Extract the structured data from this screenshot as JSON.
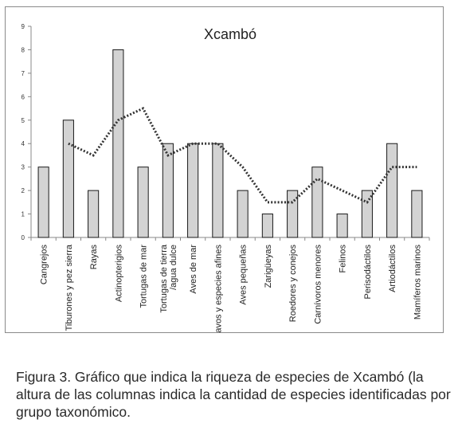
{
  "chart_data": {
    "type": "bar",
    "title": "Xcambó",
    "categories": [
      "Cangrejos",
      "Tiburones y pez sierra",
      "Rayas",
      "Actinopterigios",
      "Tortugas de mar",
      "Tortugas de tierra\n/agua dulce",
      "Aves de mar",
      "Pavos y especies afines",
      "Aves pequeñas",
      "Zarigüeyas",
      "Roedores y conejos",
      "Carnívoros menores",
      "Felinos",
      "Perisodáctilos",
      "Artiodáctilos",
      "Mamíferos marinos"
    ],
    "series": [
      {
        "values": [
          3,
          5,
          2,
          8,
          3,
          4,
          4,
          4,
          2,
          1,
          2,
          3,
          1,
          2,
          4,
          2
        ]
      }
    ],
    "trendline": {
      "style": "dotted",
      "values": [
        null,
        4,
        3.5,
        5,
        5.5,
        3.5,
        4,
        4,
        3,
        1.5,
        1.5,
        2.5,
        2,
        1.5,
        3,
        3
      ]
    },
    "ylim": [
      0,
      9
    ],
    "yticks": [
      0,
      1,
      2,
      3,
      4,
      5,
      6,
      7,
      8,
      9
    ],
    "grid": false,
    "legend": "none",
    "colors": {
      "bar_fill": "#d3d3d3",
      "bar_stroke": "#1a1a1a",
      "trend": "#333333",
      "axis": "#888888"
    }
  },
  "caption": "Figura 3. Gráfico que indica la riqueza de especies de Xcambó (la altura de las columnas indica la cantidad de especies identificadas por grupo taxonómico."
}
